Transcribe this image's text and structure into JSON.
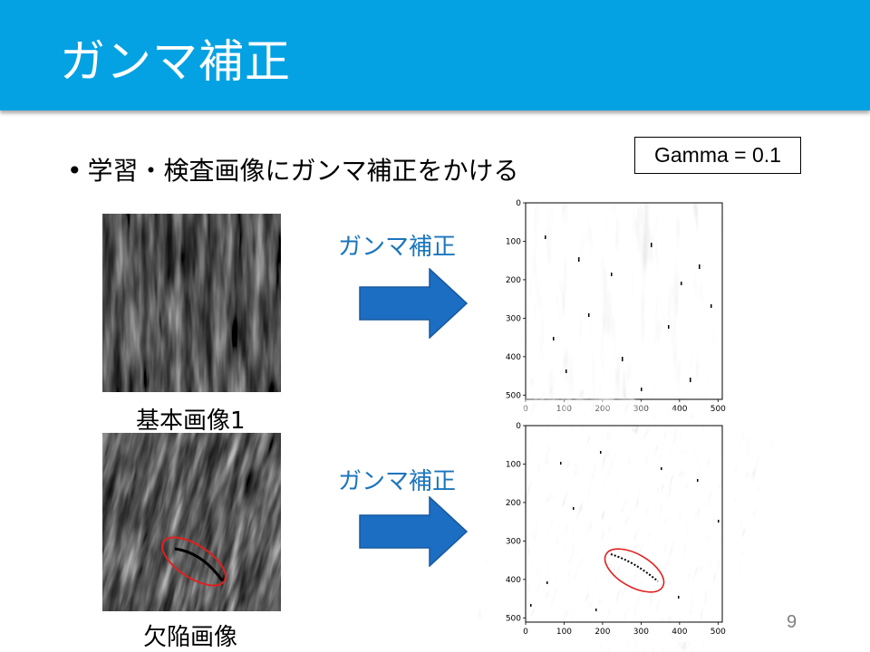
{
  "header": {
    "title": "ガンマ補正"
  },
  "bullet": {
    "marker": "•",
    "text": "学習・検査画像にガンマ補正をかける"
  },
  "gamma_box": {
    "text": "Gamma = 0.1"
  },
  "rows": [
    {
      "caption": "基本画像1",
      "arrow_label": "ガンマ補正"
    },
    {
      "caption": "欠陥画像",
      "arrow_label": "ガンマ補正"
    }
  ],
  "arrow_color": "#1b6ec2",
  "highlight_color": "#e02020",
  "plot": {
    "x_ticks": [
      "0",
      "100",
      "200",
      "300",
      "400",
      "500"
    ],
    "y_ticks": [
      "0",
      "100",
      "200",
      "300",
      "400",
      "500"
    ]
  },
  "page_number": "9"
}
